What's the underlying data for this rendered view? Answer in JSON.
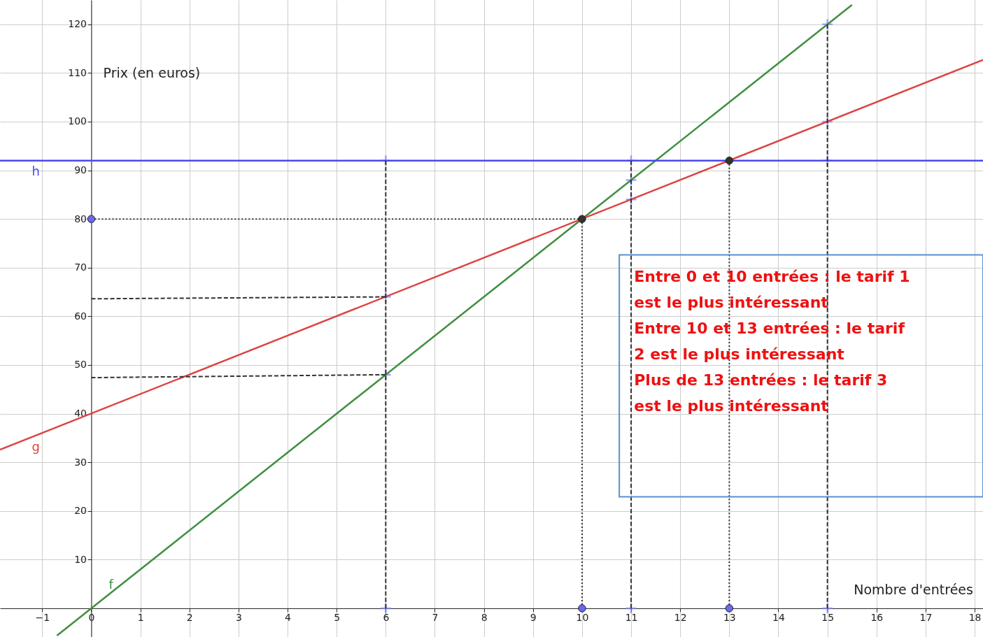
{
  "chart_data": {
    "type": "line",
    "xlabel": "Nombre d'entrées",
    "ylabel": "Prix (en euros)",
    "xlim": [
      -1.86,
      18.17
    ],
    "ylim": [
      -5.9,
      125
    ],
    "xticks": [
      -1,
      0,
      1,
      2,
      3,
      4,
      5,
      6,
      7,
      8,
      9,
      10,
      11,
      12,
      13,
      14,
      15,
      16,
      17,
      18
    ],
    "yticks": [
      10,
      20,
      30,
      40,
      50,
      60,
      70,
      80,
      90,
      100,
      110,
      120
    ],
    "grid": true,
    "series": [
      {
        "name": "f",
        "color": "#3f8f3f",
        "x": [
          -0.7,
          15.5
        ],
        "values": [
          -5.6,
          124
        ]
      },
      {
        "name": "g",
        "color": "#dd4444",
        "x": [
          -1.86,
          18.17
        ],
        "values": [
          32.6,
          112.7
        ]
      },
      {
        "name": "h",
        "color": "#4a4aee",
        "x": [
          -1.86,
          18.17
        ],
        "values": [
          92,
          92
        ]
      },
      {
        "type": "line",
        "line_style": "dashed",
        "color": "#333333",
        "x": [
          6,
          6
        ],
        "values": [
          0,
          92
        ]
      },
      {
        "type": "line",
        "line_style": "dashed",
        "color": "#333333",
        "x": [
          11,
          11
        ],
        "values": [
          0,
          92
        ]
      },
      {
        "type": "line",
        "line_style": "dashed",
        "color": "#333333",
        "x": [
          15,
          15
        ],
        "values": [
          0,
          120
        ]
      },
      {
        "type": "line",
        "line_style": "dashed",
        "color": "#333333",
        "x": [
          0,
          6
        ],
        "values": [
          63.6,
          64
        ]
      },
      {
        "type": "line",
        "line_style": "dashed",
        "color": "#333333",
        "x": [
          0,
          6
        ],
        "values": [
          47.4,
          48
        ]
      },
      {
        "type": "line",
        "line_style": "dotted",
        "color": "#333333",
        "x": [
          10,
          10
        ],
        "values": [
          0,
          80
        ]
      },
      {
        "type": "line",
        "line_style": "dotted",
        "color": "#333333",
        "x": [
          0,
          10
        ],
        "values": [
          80,
          80
        ]
      },
      {
        "type": "line",
        "line_style": "dotted",
        "color": "#333333",
        "x": [
          13,
          13
        ],
        "values": [
          0,
          92
        ]
      },
      {
        "type": "scatter",
        "marker": "cross",
        "color": "#8080ff",
        "x": [
          6,
          6,
          6,
          6,
          11,
          11,
          11,
          11,
          15,
          15,
          15,
          15
        ],
        "values": [
          92,
          64,
          48,
          0,
          92,
          88,
          84,
          0,
          120,
          100,
          92,
          0
        ]
      },
      {
        "type": "scatter",
        "marker": "circle",
        "color": "#333333",
        "x": [
          10,
          13
        ],
        "values": [
          80,
          92
        ]
      },
      {
        "type": "scatter",
        "marker": "circle",
        "color": "#6a6aee",
        "x": [
          10,
          13,
          0
        ],
        "values": [
          0,
          0,
          80
        ]
      }
    ],
    "annotations": [
      "Entre 0 et 10 entrées : le tarif 1 est le plus intéressant",
      "Entre 10 et 13 entrées : le tarif 2 est le plus intéressant",
      "Plus de 13 entrées : le tarif 3 est le plus intéressant"
    ]
  }
}
